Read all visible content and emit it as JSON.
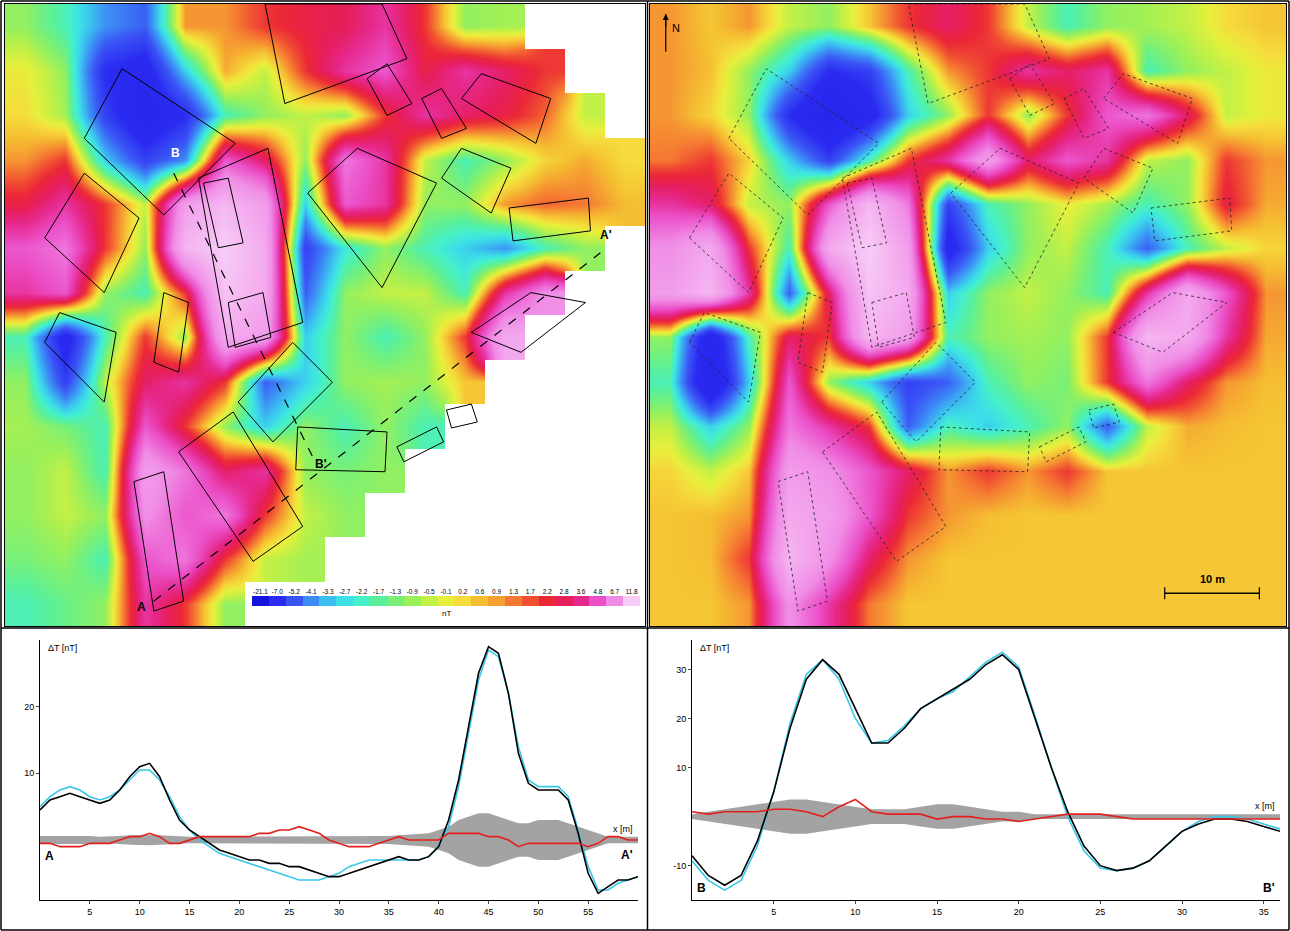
{
  "chart_data": [
    {
      "type": "heatmap",
      "tick_labels": false,
      "x": [
        2.1,
        6.3,
        10.5,
        14.7,
        18.9,
        23.1,
        27.3,
        31.5,
        35.7,
        39.9,
        44.1,
        48.3,
        52.5,
        56.7,
        60.9,
        65.1
      ],
      "y": [
        63.45,
        58.75,
        54.05,
        49.35,
        44.65,
        39.95,
        35.25,
        30.55,
        25.85,
        21.15,
        16.45,
        11.75,
        7.05,
        2.35
      ],
      "xlim": [
        0,
        67.2
      ],
      "ylim": [
        0,
        65.8
      ],
      "z": [
        [
          -1,
          -2,
          -4,
          -5,
          1,
          1,
          2,
          2.5,
          2.8,
          4,
          2,
          -1,
          -0.8,
          null,
          null,
          null
        ],
        [
          0,
          -1,
          -7,
          -8,
          -3,
          0.8,
          -0.5,
          2,
          4,
          5,
          2.5,
          4,
          3,
          2,
          null,
          null
        ],
        [
          0.2,
          -0.8,
          -6,
          -9,
          -7,
          -2,
          -1,
          -0.5,
          -1,
          2,
          4,
          3,
          2.5,
          1.5,
          -0.5,
          null
        ],
        [
          1,
          2,
          -3,
          -6,
          -4,
          5,
          3,
          -1,
          6,
          4,
          -0.5,
          -2,
          -1,
          0.3,
          0.8,
          0.2
        ],
        [
          2.5,
          4,
          2,
          -0.5,
          8,
          10,
          8,
          -3,
          5,
          4,
          -1,
          -1,
          1,
          1.5,
          1.3,
          0.6
        ],
        [
          5,
          6,
          2,
          -1,
          10,
          11.8,
          9,
          -6,
          -2.5,
          -1,
          -2,
          -3,
          -4,
          -2,
          -1,
          null
        ],
        [
          4,
          5,
          -1,
          -2,
          2,
          11,
          9,
          -5,
          -1,
          -0.5,
          -0.5,
          -2,
          4,
          7,
          null,
          null
        ],
        [
          -2,
          -8,
          -2,
          2,
          -1,
          9,
          8,
          -3,
          -1,
          -2,
          -1,
          2,
          9,
          null,
          null,
          null
        ],
        [
          -1,
          -6,
          -0.5,
          3,
          4,
          2,
          -5,
          -3,
          -1,
          -0.8,
          -1,
          0.5,
          null,
          null,
          null,
          null
        ],
        [
          -0.8,
          -1.3,
          -2,
          5,
          2,
          -1,
          -3,
          -1,
          -2,
          -1,
          -2,
          null,
          null,
          null,
          null,
          null
        ],
        [
          -1,
          -0.5,
          -2,
          8,
          6,
          3,
          4,
          -1,
          -1.3,
          -1,
          null,
          null,
          null,
          null,
          null,
          null
        ],
        [
          -1,
          -0.5,
          -1,
          7,
          5,
          6,
          2,
          -0.5,
          -1,
          null,
          null,
          null,
          null,
          null,
          null,
          null
        ],
        [
          -1.3,
          -1,
          -2,
          5,
          6,
          2,
          -0.5,
          -0.8,
          null,
          null,
          null,
          null,
          null,
          null,
          null,
          null
        ],
        [
          -2,
          -1.5,
          -1,
          4,
          2,
          -1,
          null,
          null,
          null,
          null,
          null,
          null,
          null,
          null,
          null,
          null
        ]
      ],
      "colorbar": {
        "range": [
          -21.1,
          11.8
        ],
        "ticks": [
          -21.1,
          {
            "value": -7.0,
            "label": "-7.0"
          },
          -5.2,
          -4.1,
          -3.3,
          -2.7,
          -2.2,
          -1.7,
          -1.3,
          -0.9,
          -0.5,
          -0.1,
          0.2,
          0.6,
          0.9,
          1.3,
          1.7,
          2.2,
          2.8,
          3.6,
          4.8,
          6.7,
          11.8
        ],
        "label": "nT"
      },
      "annotations": [
        "A",
        "A'",
        "B",
        "B'"
      ]
    },
    {
      "type": "heatmap",
      "tick_labels": false,
      "x": [
        2.1,
        6.3,
        10.5,
        14.7,
        18.9,
        23.1,
        27.3,
        31.5,
        35.7,
        39.9,
        44.1,
        48.3,
        52.5,
        56.7,
        60.9,
        65.1
      ],
      "y": [
        63.45,
        58.75,
        54.05,
        49.35,
        44.65,
        39.95,
        35.25,
        30.55,
        25.85,
        21.15,
        16.45,
        11.75,
        7.05,
        2.35
      ],
      "xlim": [
        0,
        67.2
      ],
      "ylim": [
        0,
        65.8
      ],
      "zlim": [
        -21.1,
        11.8
      ],
      "z": [
        [
          1,
          0.5,
          1,
          -0.5,
          -1,
          0.5,
          2,
          3,
          2,
          -0.5,
          -2,
          -1,
          -0.8,
          -0.5,
          0.2,
          0.5
        ],
        [
          1,
          0.6,
          -1,
          -3,
          -7,
          -6,
          -2,
          1,
          2,
          4,
          3,
          4,
          -2,
          -1,
          -0.5,
          0
        ],
        [
          1,
          0.3,
          -1,
          -7,
          -10,
          -8,
          -3,
          -1,
          2,
          -1,
          2,
          5,
          6,
          3,
          -0.5,
          0
        ],
        [
          1.3,
          2,
          0.3,
          -3,
          -6,
          -2,
          2,
          4,
          8,
          3,
          5,
          4,
          -0.5,
          -1,
          2,
          1
        ],
        [
          4,
          3,
          -0.5,
          -1,
          5,
          10,
          6,
          -6,
          -2,
          -1,
          0,
          -0.8,
          -2,
          -1,
          2.5,
          0.8
        ],
        [
          7,
          9,
          2,
          -2,
          9,
          11.8,
          8,
          -8,
          -3,
          -1,
          -0.5,
          -2,
          -5,
          -2,
          -0.5,
          0.3
        ],
        [
          8,
          10,
          4,
          -5,
          3,
          11,
          9,
          -3,
          -1,
          -0.5,
          -1,
          -2,
          4,
          9,
          5,
          1
        ],
        [
          -1,
          -9,
          -2,
          3,
          2,
          10,
          8,
          -2,
          -1,
          -0.8,
          -1,
          2,
          10,
          9,
          4,
          0.8
        ],
        [
          -2,
          -10,
          -3,
          5,
          -1,
          -3,
          -6,
          -5,
          -2,
          -1,
          -1.3,
          2,
          6,
          3,
          1,
          0.6
        ],
        [
          -0.5,
          -3,
          -1,
          6,
          4,
          2,
          -5,
          -2,
          -3,
          -2,
          -1,
          -5,
          -0.5,
          0.8,
          0.6,
          0.5
        ],
        [
          0.3,
          -0.5,
          0.5,
          8,
          7,
          5,
          3,
          1,
          2,
          1,
          2,
          0.5,
          0.5,
          0.5,
          0.5,
          0.5
        ],
        [
          0.5,
          0.6,
          1,
          9,
          8,
          5,
          2,
          1,
          0.6,
          0.5,
          0.5,
          0.5,
          0.5,
          0.5,
          0.5,
          0.5
        ],
        [
          0.5,
          0.6,
          2,
          10,
          7,
          3,
          1,
          0.5,
          0.5,
          0.5,
          0.5,
          0.5,
          0.5,
          0.5,
          0.5,
          0.5
        ],
        [
          0.5,
          0.5,
          1,
          7,
          4,
          1.3,
          0.5,
          0.5,
          0.5,
          0.5,
          0.5,
          0.5,
          0.5,
          0.5,
          0.5,
          0.5
        ]
      ],
      "annotations": [
        "N"
      ],
      "scale_bar": {
        "length": 10,
        "label": "10 m"
      }
    },
    {
      "type": "line",
      "grid": false,
      "ylabel": "ΔT [nT]",
      "xlabel": "x [m]",
      "start_label": "A",
      "end_label": "A'",
      "xlim": [
        0,
        60
      ],
      "ylim": [
        -9,
        30
      ],
      "xticks": [
        5,
        10,
        15,
        20,
        25,
        30,
        35,
        40,
        45,
        50,
        55
      ],
      "yticks": [
        10,
        20
      ],
      "x": [
        0,
        1,
        2,
        3,
        4,
        5,
        6,
        7,
        8,
        9,
        10,
        11,
        12,
        13,
        14,
        15,
        16,
        17,
        18,
        19,
        20,
        21,
        22,
        23,
        24,
        25,
        26,
        27,
        28,
        29,
        30,
        31,
        32,
        33,
        34,
        35,
        36,
        37,
        38,
        39,
        40,
        41,
        42,
        43,
        44,
        45,
        46,
        47,
        48,
        49,
        50,
        51,
        52,
        53,
        54,
        55,
        56,
        57,
        58,
        59,
        60
      ],
      "series": [
        {
          "type": "band",
          "color": "#a3a3a3",
          "values": [
            0.6,
            0.6,
            0.7,
            0.7,
            0.6,
            0.6,
            0.5,
            0.5,
            0.6,
            0.7,
            0.8,
            0.8,
            0.7,
            0.6,
            0.5,
            0.5,
            0.5,
            0.5,
            0.5,
            0.5,
            0.5,
            0.5,
            0.5,
            0.5,
            0.5,
            0.5,
            0.5,
            0.5,
            0.5,
            0.5,
            0.5,
            0.5,
            0.5,
            0.5,
            0.5,
            0.6,
            0.7,
            0.8,
            0.9,
            1,
            1.5,
            2,
            3,
            3.5,
            4,
            4,
            3.5,
            3,
            2.5,
            2.5,
            3,
            3,
            3,
            2.5,
            2,
            1.5,
            1,
            0.5,
            0.5,
            0.5,
            0.5
          ]
        },
        {
          "type": "line",
          "color": "#38c8e8",
          "values": [
            5,
            6.5,
            7.5,
            8,
            7.5,
            6.5,
            6,
            6.5,
            7.5,
            9,
            10.5,
            10.5,
            9,
            6.5,
            3.5,
            1.5,
            0,
            -1,
            -2,
            -2.5,
            -3,
            -3.5,
            -4,
            -4.5,
            -5,
            -5.5,
            -6,
            -6,
            -6,
            -5.5,
            -5,
            -4,
            -3.5,
            -3,
            -3,
            -3,
            -3,
            -3,
            -3,
            -2.5,
            -1,
            2,
            8,
            16,
            24,
            28.5,
            27.5,
            22,
            14,
            9,
            8,
            8,
            8,
            6.5,
            1.5,
            -4,
            -7.5,
            -7.5,
            -6.5,
            -6,
            -5.5
          ]
        },
        {
          "type": "line",
          "color": "#000000",
          "values": [
            4.5,
            6,
            6.5,
            7,
            6.5,
            6,
            5.5,
            6,
            7.5,
            9.5,
            11,
            11.5,
            9.5,
            6,
            3,
            1.5,
            0.5,
            -0.5,
            -1.5,
            -2,
            -2.5,
            -3,
            -3,
            -3.5,
            -3.5,
            -4,
            -4,
            -4.5,
            -5,
            -5.5,
            -5.5,
            -5,
            -4.5,
            -4,
            -3.5,
            -3,
            -2.5,
            -3,
            -3,
            -2.5,
            -1,
            3,
            9,
            17,
            25,
            29,
            28,
            22,
            13,
            8.5,
            7.5,
            7.5,
            7.5,
            6,
            1,
            -5,
            -8,
            -7,
            -6,
            -6,
            -5.5
          ]
        },
        {
          "type": "line",
          "color": "#e3201b",
          "values": [
            -0.5,
            -0.5,
            -1,
            -1,
            -1,
            -0.5,
            -0.5,
            -0.5,
            0,
            0.5,
            0.5,
            1,
            0.5,
            -0.5,
            -0.5,
            0,
            0.5,
            0.5,
            0.5,
            0.5,
            0.5,
            0.5,
            1,
            1,
            1.5,
            1.5,
            2,
            1.5,
            1,
            0,
            -0.5,
            -1,
            -1,
            -1,
            -0.5,
            0,
            0.5,
            0,
            0,
            0,
            0,
            1,
            1,
            1,
            1,
            0.5,
            0.5,
            0,
            -1,
            -0.5,
            -0.5,
            -0.5,
            -0.5,
            -0.5,
            -0.5,
            -1,
            -0.5,
            0.5,
            0.5,
            0,
            0
          ]
        }
      ]
    },
    {
      "type": "line",
      "grid": false,
      "ylabel": "ΔT [nT]",
      "xlabel": "x [m]",
      "start_label": "B",
      "end_label": "B'",
      "xlim": [
        0,
        36
      ],
      "ylim": [
        -17,
        36
      ],
      "xticks": [
        5,
        10,
        15,
        20,
        25,
        30,
        35
      ],
      "yticks": [
        -10,
        10,
        20,
        30
      ],
      "x": [
        0,
        1,
        2,
        3,
        4,
        5,
        6,
        7,
        8,
        9,
        10,
        11,
        12,
        13,
        14,
        15,
        16,
        17,
        18,
        19,
        20,
        21,
        22,
        23,
        24,
        25,
        26,
        27,
        28,
        29,
        30,
        31,
        32,
        33,
        34,
        35,
        36
      ],
      "series": [
        {
          "type": "band",
          "color": "#a3a3a3",
          "values": [
            0.5,
            1,
            1.5,
            2,
            2.5,
            3,
            3.5,
            3.5,
            3,
            2.5,
            2,
            1.5,
            1.5,
            1.5,
            2,
            2.5,
            2.5,
            2,
            1.5,
            1,
            1,
            0.5,
            0.5,
            0.5,
            0.5,
            0.5,
            0.5,
            0.5,
            0.5,
            0.5,
            0.5,
            0.5,
            0.5,
            0.5,
            0.5,
            0.5,
            0.5
          ]
        },
        {
          "type": "line",
          "color": "#38c8e8",
          "values": [
            -9,
            -13,
            -15,
            -13,
            -6,
            5,
            19,
            29,
            32,
            28,
            20,
            15,
            15.5,
            18.5,
            22,
            24,
            25.5,
            28.5,
            31.5,
            33.5,
            30.5,
            20.5,
            10,
            0,
            -7,
            -10.5,
            -11,
            -10.5,
            -9,
            -6,
            -3,
            -1,
            0,
            0,
            -0.5,
            -1.5,
            -2.5
          ]
        },
        {
          "type": "line",
          "color": "#000000",
          "values": [
            -8,
            -12,
            -14,
            -12,
            -5,
            5,
            18,
            28,
            32,
            29,
            22,
            15,
            15,
            18,
            22,
            24,
            26,
            28,
            31,
            33,
            30,
            20,
            10,
            1,
            -6,
            -10,
            -11,
            -10.5,
            -9,
            -6,
            -3,
            -1.5,
            -0.5,
            -0.5,
            -1,
            -2,
            -3
          ]
        },
        {
          "type": "line",
          "color": "#e3201b",
          "values": [
            1,
            0.5,
            1,
            1,
            1,
            1.5,
            1.5,
            1,
            0,
            2,
            3.5,
            1,
            0.5,
            0.5,
            0.5,
            -0.5,
            0,
            0,
            -0.5,
            -0.5,
            -1,
            -0.5,
            0,
            0.5,
            0.5,
            0.5,
            0,
            -0.5,
            -0.5,
            -0.5,
            -0.5,
            -0.5,
            -0.5,
            -0.5,
            -0.5,
            -0.5,
            -0.5
          ]
        }
      ]
    }
  ]
}
